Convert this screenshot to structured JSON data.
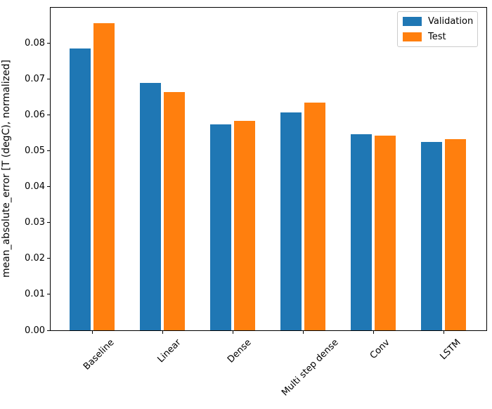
{
  "chart_data": {
    "type": "bar",
    "title": "",
    "xlabel": "",
    "ylabel": "mean_absolute_error [T (degC), normalized]",
    "categories": [
      "Baseline",
      "Linear",
      "Dense",
      "Multi step dense",
      "Conv",
      "LSTM"
    ],
    "series": [
      {
        "name": "Validation",
        "color": "#1f77b4",
        "values": [
          0.0785,
          0.0688,
          0.0573,
          0.0607,
          0.0546,
          0.0524
        ]
      },
      {
        "name": "Test",
        "color": "#ff7f0e",
        "values": [
          0.0855,
          0.0664,
          0.0584,
          0.0634,
          0.0543,
          0.0533
        ]
      }
    ],
    "ylim": [
      0,
      0.0898
    ],
    "yticks": [
      0.0,
      0.01,
      0.02,
      0.03,
      0.04,
      0.05,
      0.06,
      0.07,
      0.08
    ],
    "ytick_labels": [
      "0.00",
      "0.01",
      "0.02",
      "0.03",
      "0.04",
      "0.05",
      "0.06",
      "0.07",
      "0.08"
    ],
    "xtick_rotation_deg": 45,
    "grid": false,
    "legend": {
      "position": "upper right",
      "entries": [
        "Validation",
        "Test"
      ]
    },
    "bar_width_units": 0.3,
    "bar_offset_units": 0.17,
    "axis_color": "#000000",
    "background_color": "#ffffff"
  }
}
